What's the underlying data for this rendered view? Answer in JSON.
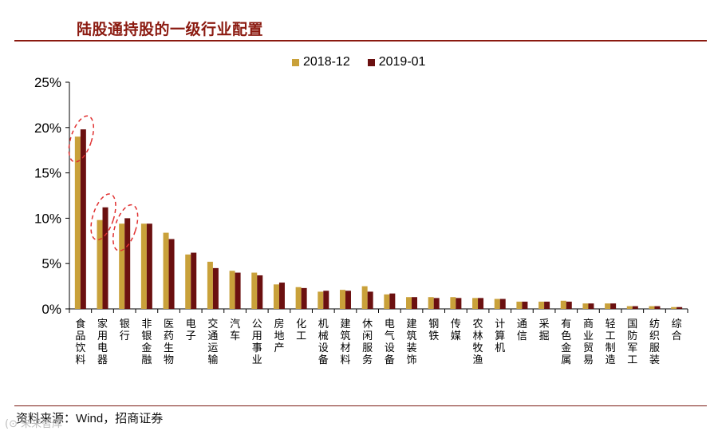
{
  "header": {
    "title": "陆股通持股的一级行业配置"
  },
  "footer": {
    "source_prefix": "资料来源：",
    "source_wind": "Wind",
    "source_suffix": "，招商证券",
    "watermark": "(⊙ 未来智库"
  },
  "colors": {
    "series_2018": "#c9a13a",
    "series_2019": "#6b1010",
    "accent": "#8b1a10",
    "highlight": "#e03030"
  },
  "chart_data": {
    "type": "bar",
    "title": "陆股通持股的一级行业配置",
    "categories": [
      "食品饮料",
      "家用电器",
      "银行",
      "非银金融",
      "医药生物",
      "电子",
      "交通运输",
      "汽车",
      "公用事业",
      "房地产",
      "化工",
      "机械设备",
      "建筑材料",
      "休闲服务",
      "电气设备",
      "建筑装饰",
      "钢铁",
      "传媒",
      "农林牧渔",
      "计算机",
      "通信",
      "采掘",
      "有色金属",
      "商业贸易",
      "轻工制造",
      "国防军工",
      "纺织服装",
      "综合"
    ],
    "series": [
      {
        "name": "2018-12",
        "values": [
          19.0,
          9.8,
          9.4,
          9.4,
          8.4,
          6.0,
          5.2,
          4.2,
          4.0,
          2.7,
          2.4,
          1.9,
          2.1,
          2.5,
          1.6,
          1.3,
          1.3,
          1.3,
          1.2,
          1.1,
          0.8,
          0.8,
          0.9,
          0.6,
          0.6,
          0.3,
          0.3,
          0.2
        ]
      },
      {
        "name": "2019-01",
        "values": [
          19.8,
          11.2,
          10.0,
          9.4,
          7.7,
          6.2,
          4.5,
          4.0,
          3.7,
          2.9,
          2.3,
          2.0,
          2.0,
          1.9,
          1.7,
          1.3,
          1.2,
          1.2,
          1.2,
          1.1,
          0.8,
          0.8,
          0.8,
          0.6,
          0.6,
          0.3,
          0.3,
          0.2
        ]
      }
    ],
    "y_tick_labels": [
      "0%",
      "5%",
      "10%",
      "15%",
      "20%",
      "25%"
    ],
    "ylim": [
      0,
      25
    ],
    "grid": false,
    "legend_position": "top-center",
    "annotations": [
      {
        "type": "dashed-ellipse",
        "category": "食品饮料"
      },
      {
        "type": "dashed-ellipse",
        "category": "家用电器"
      },
      {
        "type": "dashed-ellipse",
        "category": "银行"
      }
    ]
  }
}
